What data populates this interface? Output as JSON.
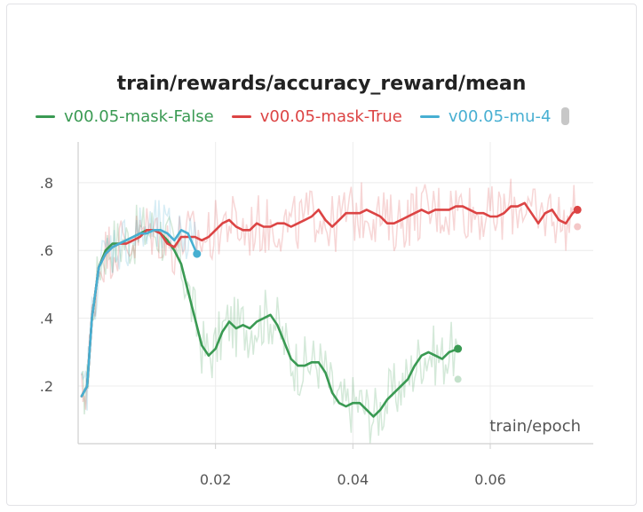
{
  "chart_data": {
    "type": "line",
    "title": "train/rewards/accuracy_reward/mean",
    "xlabel": "train/epoch",
    "ylabel": "",
    "xlim": [
      0,
      0.075
    ],
    "ylim": [
      0.03,
      0.92
    ],
    "x_ticks": [
      {
        "value": 0.02,
        "label": "0.02"
      },
      {
        "value": 0.04,
        "label": "0.04"
      },
      {
        "value": 0.06,
        "label": "0.06"
      }
    ],
    "y_ticks": [
      {
        "value": 0.2,
        "label": ".2"
      },
      {
        "value": 0.4,
        "label": ".4"
      },
      {
        "value": 0.6,
        "label": ".6"
      },
      {
        "value": 0.8,
        "label": ".8"
      }
    ],
    "grid": true,
    "legend_position": "top",
    "series": [
      {
        "name": "v00.05-mask-False",
        "color": "#3a9a53",
        "raw_end": 0.22,
        "x": [
          0.0005,
          0.0013,
          0.002,
          0.003,
          0.004,
          0.005,
          0.006,
          0.007,
          0.008,
          0.009,
          0.01,
          0.011,
          0.012,
          0.013,
          0.014,
          0.015,
          0.016,
          0.017,
          0.018,
          0.019,
          0.02,
          0.021,
          0.022,
          0.023,
          0.024,
          0.025,
          0.026,
          0.027,
          0.028,
          0.029,
          0.03,
          0.031,
          0.032,
          0.033,
          0.034,
          0.035,
          0.036,
          0.037,
          0.038,
          0.039,
          0.04,
          0.041,
          0.042,
          0.043,
          0.044,
          0.045,
          0.046,
          0.047,
          0.048,
          0.049,
          0.05,
          0.051,
          0.052,
          0.053,
          0.054,
          0.0553
        ],
        "y": [
          0.17,
          0.2,
          0.4,
          0.55,
          0.6,
          0.62,
          0.62,
          0.63,
          0.64,
          0.65,
          0.66,
          0.66,
          0.65,
          0.63,
          0.6,
          0.56,
          0.48,
          0.4,
          0.32,
          0.29,
          0.31,
          0.36,
          0.39,
          0.37,
          0.38,
          0.37,
          0.39,
          0.4,
          0.41,
          0.38,
          0.33,
          0.28,
          0.26,
          0.26,
          0.27,
          0.27,
          0.24,
          0.18,
          0.15,
          0.14,
          0.15,
          0.15,
          0.13,
          0.11,
          0.13,
          0.16,
          0.18,
          0.2,
          0.22,
          0.26,
          0.29,
          0.3,
          0.29,
          0.28,
          0.3,
          0.31
        ]
      },
      {
        "name": "v00.05-mask-True",
        "color": "#dc4444",
        "raw_end": 0.67,
        "x": [
          0.0005,
          0.0013,
          0.002,
          0.003,
          0.004,
          0.005,
          0.006,
          0.007,
          0.008,
          0.009,
          0.01,
          0.011,
          0.012,
          0.013,
          0.014,
          0.015,
          0.016,
          0.017,
          0.018,
          0.019,
          0.02,
          0.021,
          0.022,
          0.023,
          0.024,
          0.025,
          0.026,
          0.027,
          0.028,
          0.029,
          0.03,
          0.031,
          0.032,
          0.033,
          0.034,
          0.035,
          0.036,
          0.037,
          0.038,
          0.039,
          0.04,
          0.041,
          0.042,
          0.043,
          0.044,
          0.045,
          0.046,
          0.047,
          0.048,
          0.049,
          0.05,
          0.051,
          0.052,
          0.053,
          0.054,
          0.055,
          0.056,
          0.057,
          0.058,
          0.059,
          0.06,
          0.061,
          0.062,
          0.063,
          0.064,
          0.065,
          0.066,
          0.067,
          0.068,
          0.069,
          0.07,
          0.071,
          0.072,
          0.0727
        ],
        "y": [
          0.17,
          0.2,
          0.4,
          0.55,
          0.59,
          0.61,
          0.62,
          0.62,
          0.63,
          0.64,
          0.66,
          0.66,
          0.65,
          0.62,
          0.61,
          0.64,
          0.64,
          0.64,
          0.63,
          0.64,
          0.66,
          0.68,
          0.69,
          0.67,
          0.66,
          0.66,
          0.68,
          0.67,
          0.67,
          0.68,
          0.68,
          0.67,
          0.68,
          0.69,
          0.7,
          0.72,
          0.69,
          0.67,
          0.69,
          0.71,
          0.71,
          0.71,
          0.72,
          0.71,
          0.7,
          0.68,
          0.68,
          0.69,
          0.7,
          0.71,
          0.72,
          0.71,
          0.72,
          0.72,
          0.72,
          0.73,
          0.73,
          0.72,
          0.71,
          0.71,
          0.7,
          0.7,
          0.71,
          0.73,
          0.73,
          0.74,
          0.71,
          0.68,
          0.71,
          0.72,
          0.69,
          0.68,
          0.71,
          0.72
        ]
      },
      {
        "name": "v00.05-mu-4",
        "color": "#47afd2",
        "raw_end": 0.59,
        "x": [
          0.0005,
          0.0013,
          0.002,
          0.003,
          0.004,
          0.005,
          0.006,
          0.007,
          0.008,
          0.009,
          0.01,
          0.011,
          0.012,
          0.013,
          0.014,
          0.015,
          0.016,
          0.0173
        ],
        "y": [
          0.17,
          0.2,
          0.4,
          0.55,
          0.59,
          0.61,
          0.62,
          0.63,
          0.64,
          0.65,
          0.65,
          0.66,
          0.66,
          0.65,
          0.63,
          0.66,
          0.65,
          0.59
        ]
      }
    ]
  }
}
